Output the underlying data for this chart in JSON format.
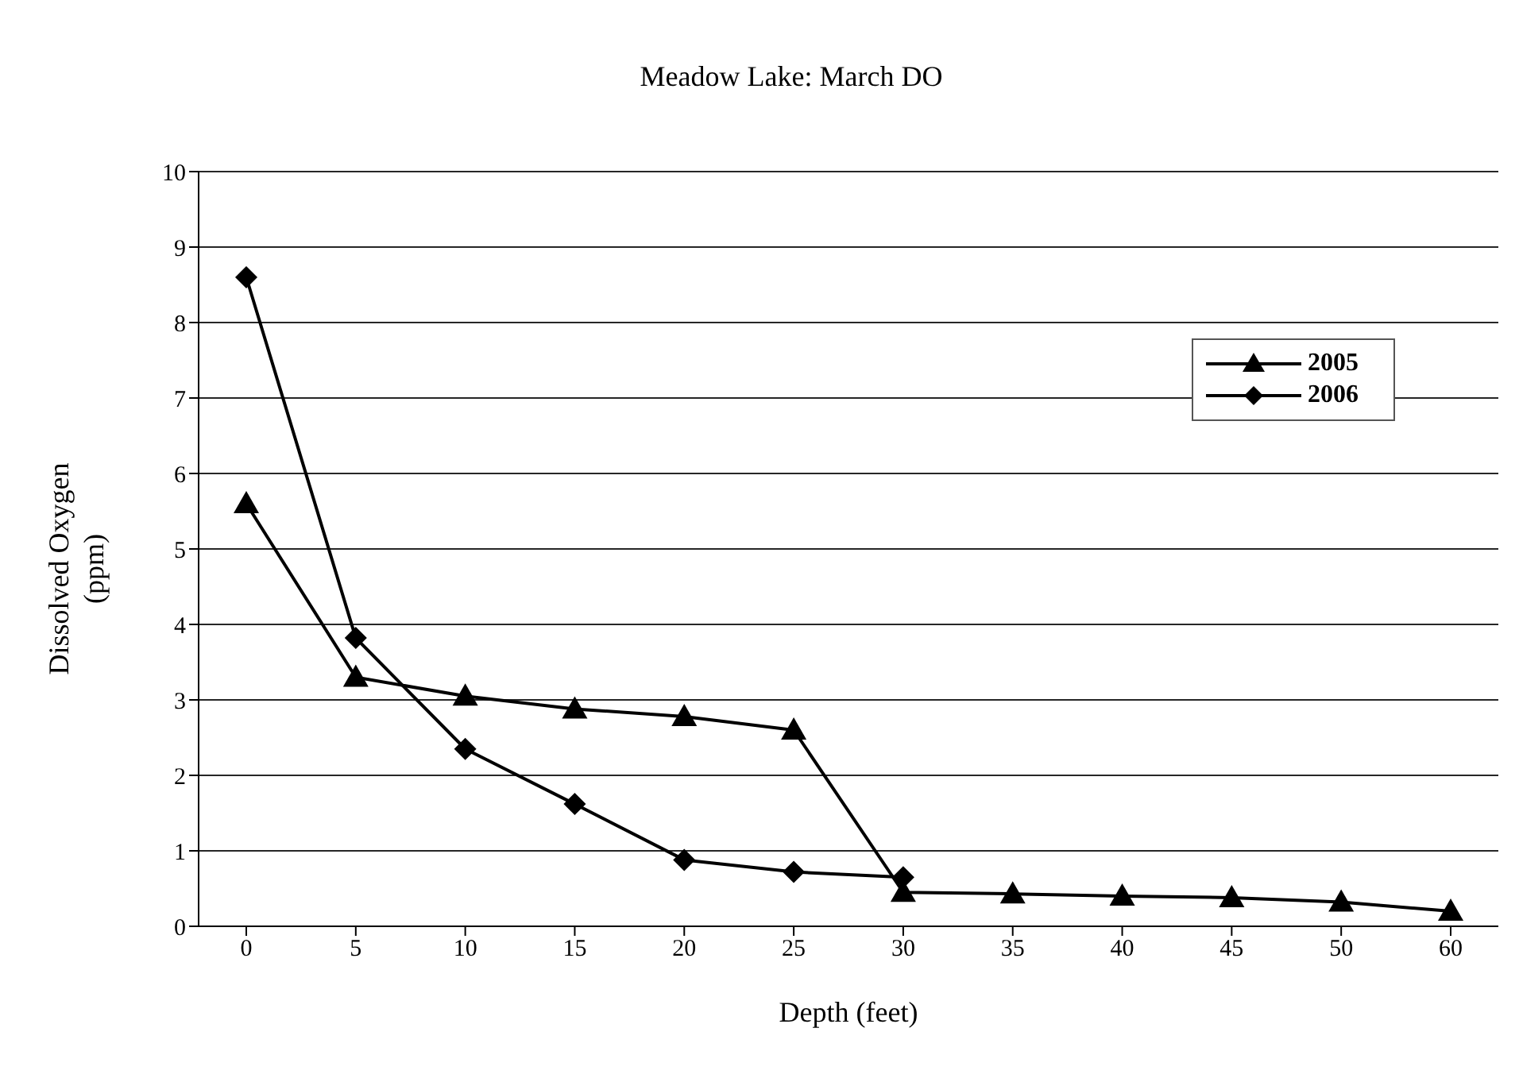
{
  "chart_data": {
    "type": "line",
    "title": "Meadow Lake: March DO",
    "xlabel": "Depth (feet)",
    "ylabel": "Dissolved Oxygen\n(ppm)",
    "categories": [
      "0",
      "5",
      "10",
      "15",
      "20",
      "25",
      "30",
      "35",
      "40",
      "45",
      "50",
      "60"
    ],
    "series": [
      {
        "name": "2005",
        "color": "#000000",
        "marker": "triangle",
        "values": [
          5.6,
          3.3,
          3.05,
          2.88,
          2.78,
          2.6,
          0.45,
          0.43,
          0.4,
          0.38,
          0.32,
          0.2
        ]
      },
      {
        "name": "2006",
        "color": "#000000",
        "marker": "diamond",
        "values": [
          8.6,
          3.82,
          2.35,
          1.62,
          0.88,
          0.72,
          0.65,
          null,
          null,
          null,
          null,
          null
        ]
      }
    ],
    "ylim": [
      0,
      10
    ],
    "yticks": [
      0,
      1,
      2,
      3,
      4,
      5,
      6,
      7,
      8,
      9,
      10
    ],
    "grid": "y",
    "legend": "right",
    "line_style": "solid"
  }
}
